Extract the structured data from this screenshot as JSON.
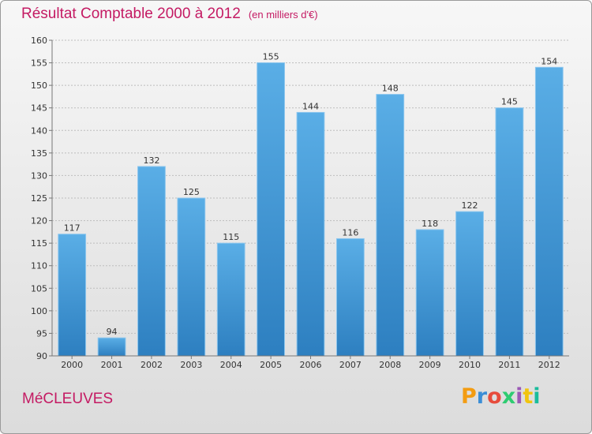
{
  "header": {
    "title": "Résultat Comptable 2000 à 2012",
    "unit": "(en milliers d'€)"
  },
  "footer": {
    "commune": "MéCLEUVES",
    "brand": "Proxiti"
  },
  "colors": {
    "title": "#c41a63",
    "bar_light": "#5aaee6",
    "bar_dark": "#2d7fc0"
  },
  "chart_data": {
    "type": "bar",
    "title": "Résultat Comptable 2000 à 2012",
    "ylabel": "en milliers d'€",
    "xlabel": "",
    "categories": [
      "2000",
      "2001",
      "2002",
      "2003",
      "2004",
      "2005",
      "2006",
      "2007",
      "2008",
      "2009",
      "2010",
      "2011",
      "2012"
    ],
    "values": [
      117,
      94,
      132,
      125,
      115,
      155,
      144,
      116,
      148,
      118,
      122,
      145,
      154
    ],
    "ylim": [
      90,
      160
    ],
    "yticks": [
      90,
      95,
      100,
      105,
      110,
      115,
      120,
      125,
      130,
      135,
      140,
      145,
      150,
      155,
      160
    ],
    "grid": true
  }
}
